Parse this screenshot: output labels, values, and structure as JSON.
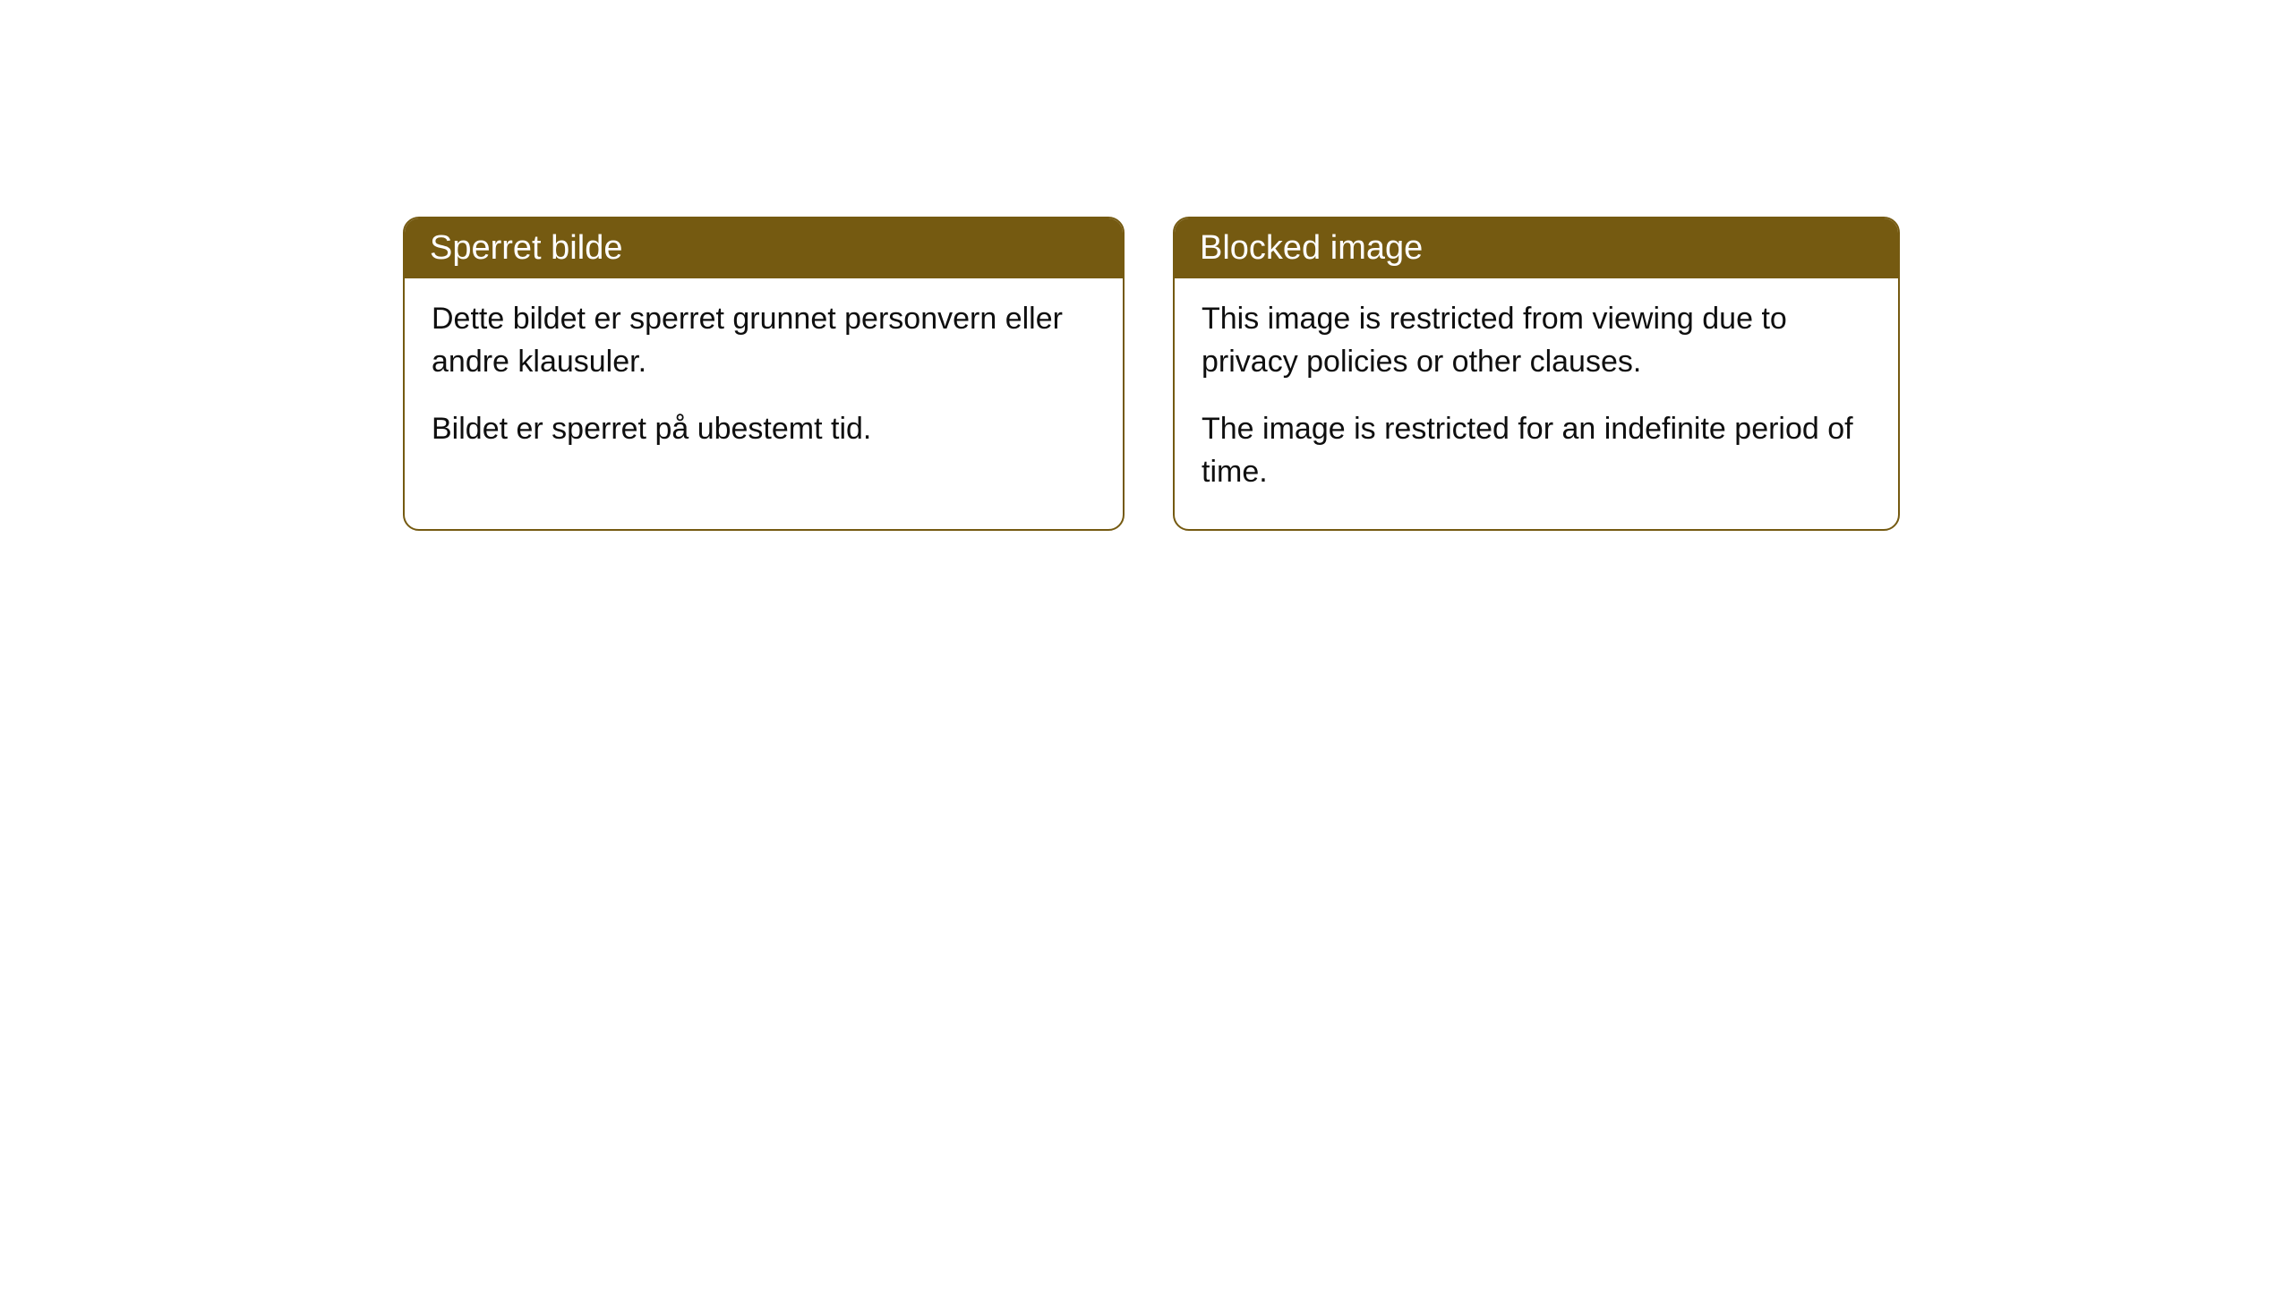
{
  "cards": [
    {
      "title": "Sperret bilde",
      "paragraph1": "Dette bildet er sperret grunnet personvern eller andre klausuler.",
      "paragraph2": "Bildet er sperret på ubestemt tid."
    },
    {
      "title": "Blocked image",
      "paragraph1": "This image is restricted from viewing due to privacy policies or other clauses.",
      "paragraph2": "The image is restricted for an indefinite period of time."
    }
  ],
  "styling": {
    "header_bg_color": "#755a11",
    "header_text_color": "#ffffff",
    "border_color": "#755a11",
    "body_bg_color": "#ffffff",
    "body_text_color": "#0f0f0f",
    "border_radius": 18,
    "title_fontsize": 38,
    "body_fontsize": 34
  }
}
